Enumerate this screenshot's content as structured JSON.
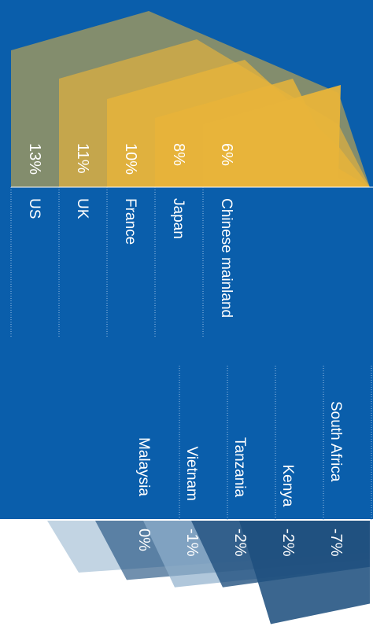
{
  "chart_data": {
    "type": "bar",
    "orientation": "rotated 90° clockwise; text reads bottom-to-top",
    "groups": [
      {
        "name": "positive",
        "categories": [
          "US",
          "UK",
          "France",
          "Japan",
          "Chinese mainland"
        ],
        "values": [
          13,
          11,
          10,
          8,
          6
        ],
        "value_labels": [
          "13%",
          "11%",
          "10%",
          "8%",
          "6%"
        ]
      },
      {
        "name": "negative",
        "categories": [
          "Malaysia",
          "Vietnam",
          "Tanzania",
          "Kenya",
          "South Africa"
        ],
        "values": [
          0,
          -1,
          -2,
          -2,
          -7
        ],
        "value_labels": [
          "0%",
          "-1%",
          "-2%",
          "-2%",
          "-7%"
        ]
      }
    ],
    "unit": "%"
  },
  "colors": {
    "background": "#0a5eab",
    "positive_fill": "#e8b43a",
    "negative_fill": "#1e4f7e",
    "negative_fill_light": "#8fb0cc",
    "text": "#ffffff",
    "dotted_line": "#9cc0e6",
    "page": "#ffffff"
  }
}
